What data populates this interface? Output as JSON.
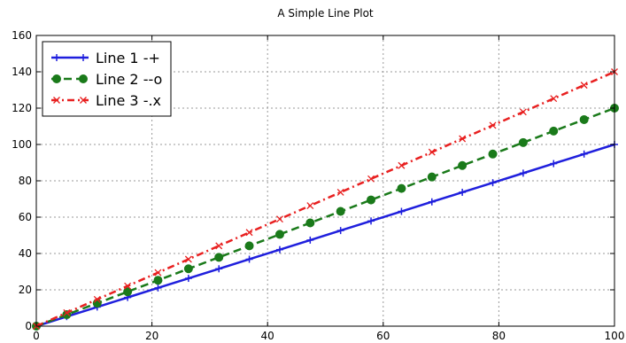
{
  "chart_data": {
    "type": "line",
    "title": "A Simple Line Plot",
    "xlabel": "",
    "ylabel": "",
    "xlim": [
      0,
      100
    ],
    "ylim": [
      0,
      160
    ],
    "xticks": [
      0,
      20,
      40,
      60,
      80,
      100
    ],
    "yticks": [
      0,
      20,
      40,
      60,
      80,
      100,
      120,
      140,
      160
    ],
    "xtick_labels": [
      "0",
      "20",
      "40",
      "60",
      "80",
      "100"
    ],
    "ytick_labels": [
      "0",
      "20",
      "40",
      "60",
      "80",
      "100",
      "120",
      "140",
      "160"
    ],
    "grid": true,
    "legend_position": "top-left",
    "series": [
      {
        "name": "Line 1 -+",
        "color": "#1f1fdd",
        "linestyle": "solid",
        "marker": "plus",
        "x": [
          0,
          5.26,
          10.53,
          15.79,
          21.05,
          26.32,
          31.58,
          36.84,
          42.11,
          47.37,
          52.63,
          57.89,
          63.16,
          68.42,
          73.68,
          78.95,
          84.21,
          89.47,
          94.74,
          100
        ],
        "y": [
          0,
          5.26,
          10.53,
          15.79,
          21.05,
          26.32,
          31.58,
          36.84,
          42.11,
          47.37,
          52.63,
          57.89,
          63.16,
          68.42,
          73.68,
          78.95,
          84.21,
          89.47,
          94.74,
          100
        ]
      },
      {
        "name": "Line 2 --o",
        "color": "#1a7a1a",
        "linestyle": "dashed",
        "marker": "circle",
        "x": [
          0,
          5.26,
          10.53,
          15.79,
          21.05,
          26.32,
          31.58,
          36.84,
          42.11,
          47.37,
          52.63,
          57.89,
          63.16,
          68.42,
          73.68,
          78.95,
          84.21,
          89.47,
          94.74,
          100
        ],
        "y": [
          0,
          6.32,
          12.63,
          18.95,
          25.26,
          31.58,
          37.89,
          44.21,
          50.53,
          56.84,
          63.16,
          69.47,
          75.79,
          82.11,
          88.42,
          94.74,
          101.05,
          107.37,
          113.68,
          120
        ]
      },
      {
        "name": "Line 3 -.x",
        "color": "#e82020",
        "linestyle": "dashdot",
        "marker": "x",
        "x": [
          0,
          5.26,
          10.53,
          15.79,
          21.05,
          26.32,
          31.58,
          36.84,
          42.11,
          47.37,
          52.63,
          57.89,
          63.16,
          68.42,
          73.68,
          78.95,
          84.21,
          89.47,
          94.74,
          100
        ],
        "y": [
          0,
          7.37,
          14.74,
          22.11,
          29.47,
          36.84,
          44.21,
          51.58,
          58.95,
          66.32,
          73.68,
          81.05,
          88.42,
          95.79,
          103.16,
          110.53,
          117.89,
          125.26,
          132.63,
          140
        ]
      }
    ]
  }
}
